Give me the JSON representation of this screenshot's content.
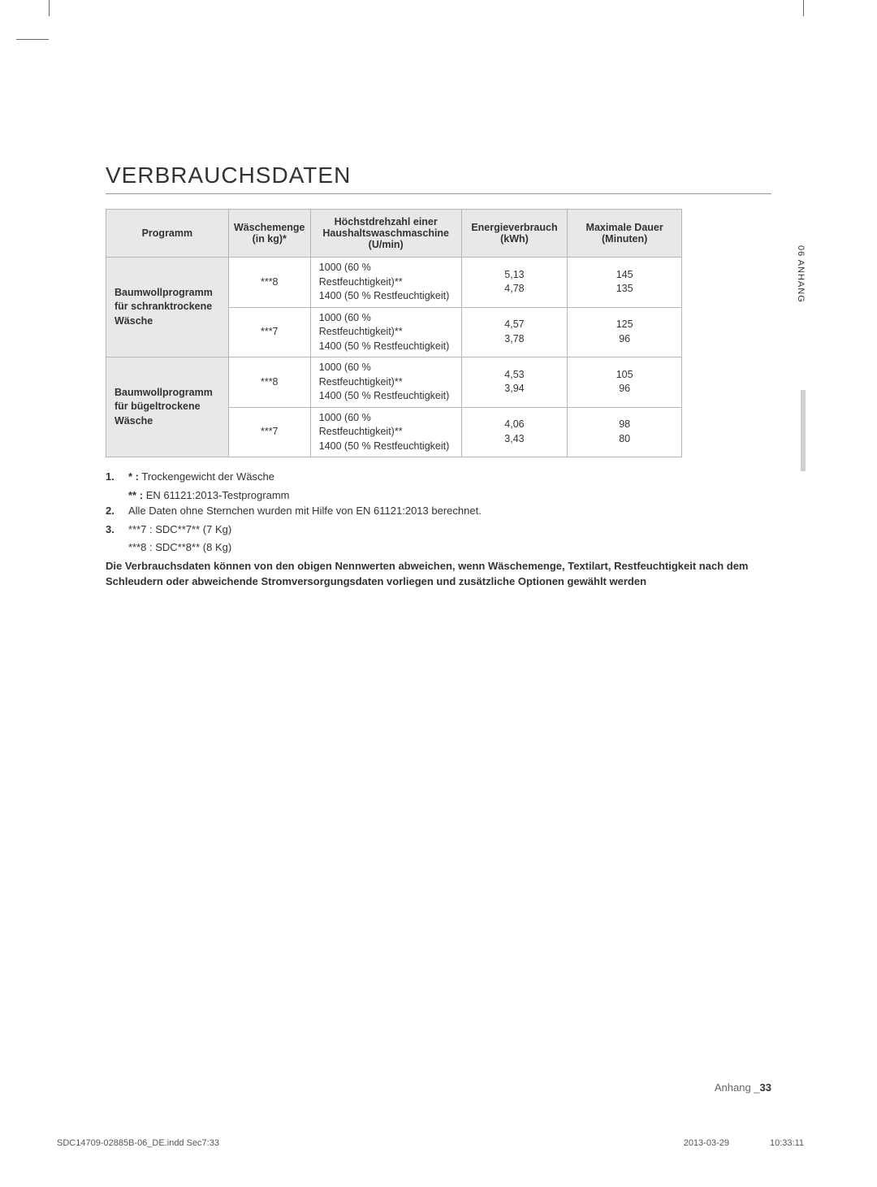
{
  "page": {
    "title": "VERBRAUCHSDATEN",
    "side_tab": "06 ANHANG",
    "footer_label": "Anhang _",
    "footer_page": "33",
    "print_file": "SDC14709-02885B-06_DE.indd   Sec7:33",
    "print_date": "2013-03-29",
    "print_time": "10:33:11"
  },
  "table": {
    "headers": {
      "programm": "Programm",
      "waesche": "Wäschemenge (in kg)*",
      "drehzahl": "Höchstdrehzahl einer Haushaltswaschmaschine (U/min)",
      "energie": "Energieverbrauch (kWh)",
      "dauer": "Maximale Dauer (Minuten)"
    },
    "rows": [
      {
        "prog": "Baumwollprogramm für schranktrockene Wäsche",
        "sub": [
          {
            "menge": "***8",
            "spin": "1000 (60 % Restfeuchtigkeit)**\n1400 (50 % Restfeuchtigkeit)",
            "kwh": "5,13\n4,78",
            "min": "145\n135"
          },
          {
            "menge": "***7",
            "spin": "1000 (60 % Restfeuchtigkeit)**\n1400 (50 % Restfeuchtigkeit)",
            "kwh": "4,57\n3,78",
            "min": "125\n96"
          }
        ]
      },
      {
        "prog": "Baumwollprogramm für bügeltrockene Wäsche",
        "sub": [
          {
            "menge": "***8",
            "spin": "1000 (60 % Restfeuchtigkeit)**\n1400 (50 % Restfeuchtigkeit)",
            "kwh": "4,53\n3,94",
            "min": "105\n96"
          },
          {
            "menge": "***7",
            "spin": "1000 (60 % Restfeuchtigkeit)**\n1400 (50 % Restfeuchtigkeit)",
            "kwh": "4,06\n3,43",
            "min": "98\n80"
          }
        ]
      }
    ]
  },
  "footnotes": {
    "n1a_label": "*  :",
    "n1a": "Trockengewicht der Wäsche",
    "n1b_label": "** :",
    "n1b": "EN 61121:2013-Testprogramm",
    "n2": "Alle Daten ohne Sternchen wurden mit Hilfe von EN 61121:2013 berechnet.",
    "n3a": "***7 : SDC**7** (7 Kg)",
    "n3b": "***8 : SDC**8** (8 Kg)",
    "bold": "Die Verbrauchsdaten können von den obigen Nennwerten abweichen, wenn Wäschemenge, Textilart, Restfeuchtigkeit nach dem Schleudern oder abweichende Stromversorgungsdaten vorliegen und zusätzliche Optionen gewählt werden"
  }
}
